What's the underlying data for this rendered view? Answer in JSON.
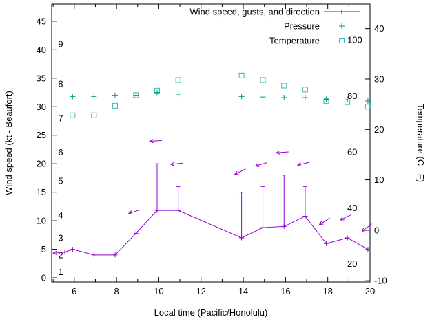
{
  "chart_data": {
    "type": "line",
    "title": "",
    "xlabel": "Local time (Pacific/Honolulu)",
    "ylabel_left": "Wind speed (kt - Beaufort)",
    "ylabel_right": "Temperature (C - F)",
    "legend": [
      {
        "label": "Wind speed, gusts, and direction",
        "series": "wind"
      },
      {
        "label": "Pressure",
        "series": "pressure"
      },
      {
        "label": "Temperature",
        "series": "temperature"
      }
    ],
    "x_range": [
      4.93,
      20.0
    ],
    "x_major_ticks": [
      6,
      8,
      10,
      12,
      14,
      16,
      18,
      20
    ],
    "x_minor_ticks": [
      5,
      7,
      9,
      11,
      13,
      15,
      17,
      19
    ],
    "y_left_range": [
      -0.72,
      48.0
    ],
    "y_left_ticks": [
      0,
      5,
      10,
      15,
      20,
      25,
      30,
      35,
      40,
      45
    ],
    "beaufort_labels": [
      [
        "1",
        1
      ],
      [
        "2",
        4
      ],
      [
        "3",
        7
      ],
      [
        "4",
        11
      ],
      [
        "5",
        17
      ],
      [
        "6",
        22
      ],
      [
        "7",
        28
      ],
      [
        "8",
        34
      ],
      [
        "9",
        41
      ]
    ],
    "y_right_ticks_c": [
      -10,
      0,
      10,
      20,
      30,
      40
    ],
    "fahrenheit_labels": [
      20,
      40,
      60,
      80,
      100
    ],
    "right_axis": {
      "kt_per_c": 0.884,
      "kt_at_minus10c": -0.5
    },
    "wind": {
      "color": "#9400d3",
      "x": [
        5.55,
        5.92,
        6.93,
        7.93,
        8.92,
        9.92,
        10.92,
        13.92,
        14.93,
        15.93,
        16.93,
        17.93,
        18.93,
        19.9
      ],
      "speed_kt": [
        4.5,
        5,
        4,
        4,
        7.8,
        11.8,
        11.8,
        7,
        8.8,
        9,
        10.8,
        6,
        7,
        5
      ],
      "gust_kt": [
        null,
        null,
        null,
        null,
        null,
        20,
        16,
        15,
        16,
        18,
        16,
        null,
        null,
        null
      ],
      "direction_arrows": [
        {
          "x": 5.28,
          "kt": 4.4,
          "angle_deg": 185
        },
        {
          "x": 8.85,
          "kt": 11.6,
          "angle_deg": 197
        },
        {
          "x": 9.85,
          "kt": 24.0,
          "angle_deg": 183
        },
        {
          "x": 10.85,
          "kt": 20.0,
          "angle_deg": 186
        },
        {
          "x": 13.85,
          "kt": 18.6,
          "angle_deg": 207
        },
        {
          "x": 14.85,
          "kt": 19.9,
          "angle_deg": 196
        },
        {
          "x": 15.85,
          "kt": 22.0,
          "angle_deg": 184
        },
        {
          "x": 16.85,
          "kt": 20.0,
          "angle_deg": 193
        },
        {
          "x": 17.85,
          "kt": 9.9,
          "angle_deg": 212
        },
        {
          "x": 18.85,
          "kt": 10.6,
          "angle_deg": 205
        },
        {
          "x": 19.85,
          "kt": 8.8,
          "angle_deg": 217
        }
      ]
    },
    "pressure": {
      "color": "#009e73",
      "x": [
        5.92,
        6.93,
        7.93,
        8.92,
        9.92,
        10.92,
        13.92,
        14.93,
        15.93,
        16.93,
        17.93,
        18.93,
        19.9
      ],
      "level_kt_axis": [
        31.8,
        31.8,
        32.0,
        32.0,
        32.5,
        32.2,
        31.8,
        31.7,
        31.6,
        31.6,
        31.3,
        31.2,
        31.0
      ]
    },
    "temperature": {
      "color": "#3cb9b9",
      "x": [
        5.92,
        6.93,
        7.93,
        8.92,
        9.92,
        10.92,
        13.92,
        14.93,
        15.93,
        16.93,
        17.93,
        18.93,
        19.9
      ],
      "c": [
        22.8,
        22.8,
        24.7,
        26.8,
        27.7,
        29.8,
        30.7,
        29.8,
        28.7,
        27.9,
        25.6,
        25.4,
        24.5
      ]
    }
  },
  "colors": {
    "axis": "#000000",
    "background": "#ffffff"
  }
}
